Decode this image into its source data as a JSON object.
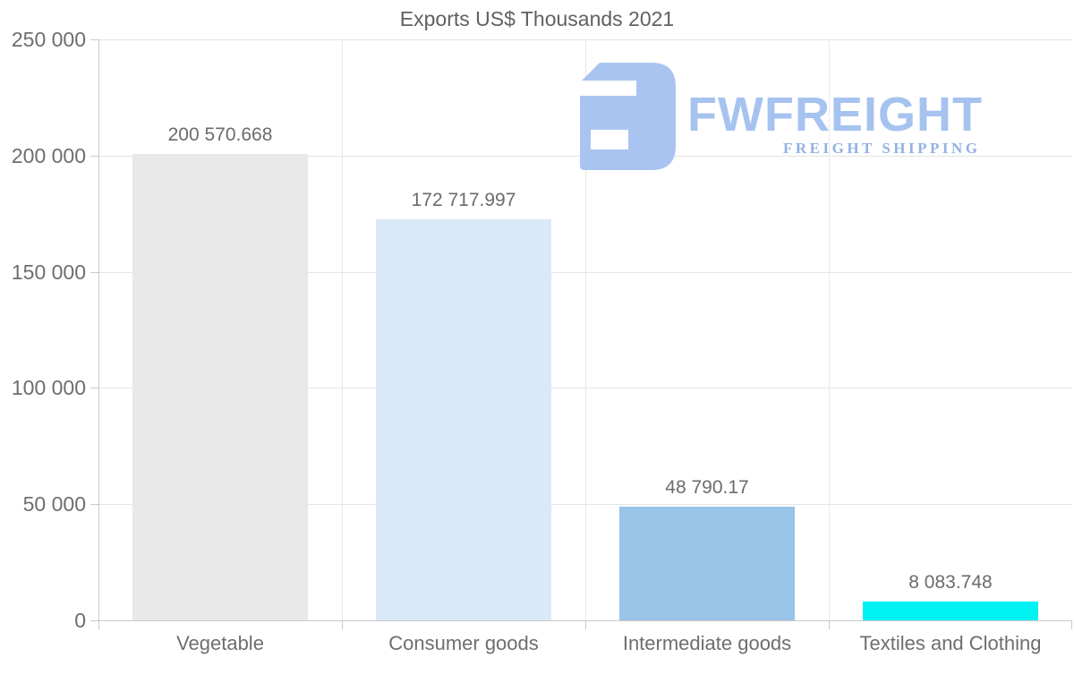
{
  "title": "Exports US$ Thousands 2021",
  "watermark": {
    "brand": "FWFREIGHT",
    "tagline": "FREIGHT SHIPPING",
    "icon_color": "#a9c4f0",
    "brand_color": "#a6c3f0",
    "tagline_color": "#93b1e3"
  },
  "colors": {
    "background": "#ffffff",
    "grid": "#e4e4e4",
    "axis": "#c9c9c9",
    "tick_text": "#6e6e6e",
    "title_text": "#616161",
    "value_text": "#6b6b6b"
  },
  "chart_data": {
    "type": "bar",
    "title": "Exports US$ Thousands 2021",
    "xlabel": "",
    "ylabel": "",
    "legend": "none",
    "grid": "horizontal gridlines + vertical category boundary lines",
    "ylim": [
      0,
      250000
    ],
    "categories": [
      "Vegetable",
      "Consumer goods",
      "Intermediate goods",
      "Textiles and Clothing"
    ],
    "values": [
      200570.668,
      172717.997,
      48790.17,
      8083.748
    ],
    "value_labels": [
      "200 570.668",
      "172 717.997",
      "48 790.17",
      "8 083.748"
    ],
    "bar_colors": [
      "#e8e8e8",
      "#d9e9f9",
      "#9ac3e8",
      "#00f2f2"
    ],
    "yticks": [
      {
        "value": 0,
        "label": "0"
      },
      {
        "value": 50000,
        "label": "50 000"
      },
      {
        "value": 100000,
        "label": "100 000"
      },
      {
        "value": 150000,
        "label": "150 000"
      },
      {
        "value": 200000,
        "label": "200 000"
      },
      {
        "value": 250000,
        "label": "250 000"
      }
    ]
  }
}
